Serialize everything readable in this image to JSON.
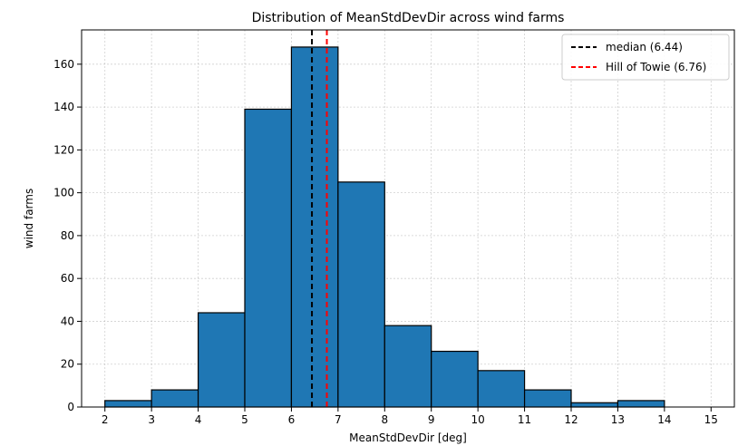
{
  "chart_data": {
    "type": "bar",
    "title": "Distribution of MeanStdDevDir across wind farms",
    "xlabel": "MeanStdDevDir [deg]",
    "ylabel": "wind farms",
    "bin_edges": [
      2,
      3,
      4,
      5,
      6,
      7,
      8,
      9,
      10,
      11,
      12,
      13,
      14,
      15
    ],
    "values": [
      3,
      8,
      44,
      139,
      168,
      105,
      38,
      26,
      17,
      8,
      2,
      3,
      0
    ],
    "xlim": [
      1.5,
      15.5
    ],
    "ylim": [
      0,
      176
    ],
    "xticks": [
      2,
      3,
      4,
      5,
      6,
      7,
      8,
      9,
      10,
      11,
      12,
      13,
      14,
      15
    ],
    "yticks": [
      0,
      20,
      40,
      60,
      80,
      100,
      120,
      140,
      160
    ],
    "grid": true,
    "bar_color": "#1f77b4",
    "reference_lines": [
      {
        "label": "median (6.44)",
        "x": 6.44,
        "color": "#000000"
      },
      {
        "label": "Hill of Towie (6.76)",
        "x": 6.76,
        "color": "#ff0000"
      }
    ],
    "legend_position": "top-right"
  }
}
